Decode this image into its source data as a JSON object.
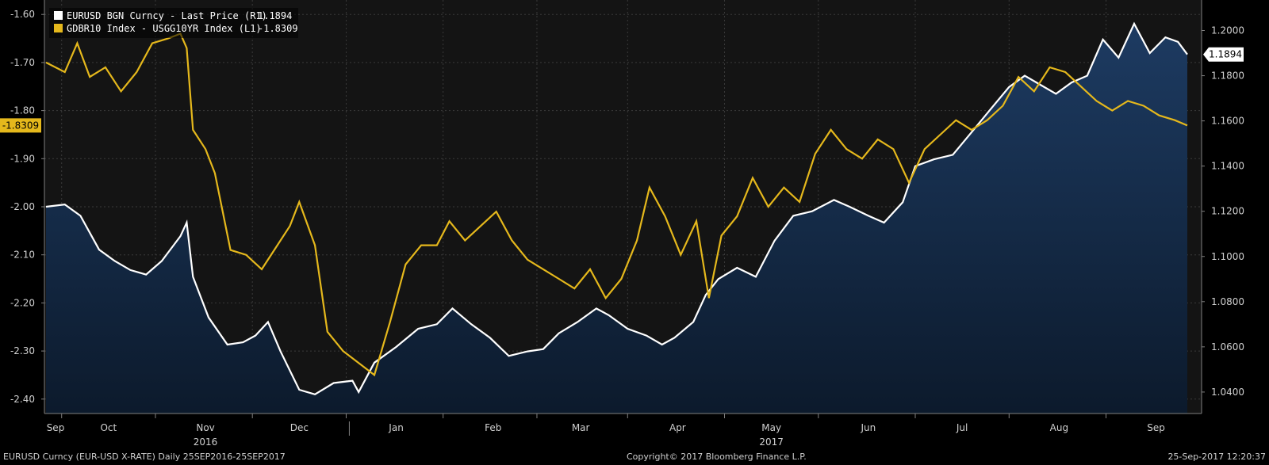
{
  "colors": {
    "background": "#000000",
    "plot_bg": "#141414",
    "grid": "#3a3a3a",
    "eurusd": "#ffffff",
    "eurusd_fill_top": "#1d3b62",
    "eurusd_fill_bottom": "#0c1a2c",
    "bund_spread": "#e5b81c"
  },
  "legend": [
    {
      "label": "EURUSD BGN Curncy - Last Price (R1)",
      "value": "1.1894",
      "color": "#ffffff"
    },
    {
      "label": "GDBR10 Index - USGG10YR Index (L1)",
      "value": "-1.8309",
      "color": "#e5b81c"
    }
  ],
  "footer": {
    "left": "EURUSD Curncy (EUR-USD X-RATE)  Daily 25SEP2016-25SEP2017",
    "center": "Copyright© 2017 Bloomberg Finance L.P.",
    "right": "25-Sep-2017 12:20:37"
  },
  "chart_data": {
    "type": "line",
    "left_axis": {
      "ylim": [
        -2.43,
        -1.57
      ],
      "ticks": [
        "-1.60",
        "-1.70",
        "-1.80",
        "-1.90",
        "-2.00",
        "-2.10",
        "-2.20",
        "-2.30",
        "-2.40"
      ],
      "last_value_label": "-1.8309"
    },
    "right_axis": {
      "ylim": [
        1.0305,
        1.2135
      ],
      "ticks": [
        "1.2000",
        "1.1800",
        "1.1600",
        "1.1400",
        "1.1200",
        "1.1000",
        "1.0800",
        "1.0600",
        "1.0400"
      ],
      "last_value_label": "1.1894"
    },
    "x_axis": {
      "range": [
        "2016-09-25",
        "2017-09-25"
      ],
      "months": [
        {
          "label": "Sep",
          "date": "2016-09-15",
          "year": ""
        },
        {
          "label": "Oct",
          "date": "2016-10-15",
          "year": ""
        },
        {
          "label": "Nov",
          "date": "2016-11-15",
          "year": "2016"
        },
        {
          "label": "Dec",
          "date": "2016-12-15",
          "year": ""
        },
        {
          "label": "Jan",
          "date": "2017-01-15",
          "year": ""
        },
        {
          "label": "Feb",
          "date": "2017-02-15",
          "year": ""
        },
        {
          "label": "Mar",
          "date": "2017-03-15",
          "year": ""
        },
        {
          "label": "Apr",
          "date": "2017-04-15",
          "year": ""
        },
        {
          "label": "May",
          "date": "2017-05-15",
          "year": "2017"
        },
        {
          "label": "Jun",
          "date": "2017-06-15",
          "year": ""
        },
        {
          "label": "Jul",
          "date": "2017-07-15",
          "year": ""
        },
        {
          "label": "Aug",
          "date": "2017-08-15",
          "year": ""
        },
        {
          "label": "Sep",
          "date": "2017-09-15",
          "year": ""
        }
      ]
    },
    "grid": true,
    "legend_position": "top-left",
    "series": [
      {
        "name": "EURUSD BGN Curncy - Last Price (R1)",
        "axis": "right",
        "type": "area",
        "points": [
          [
            "2016-09-25",
            1.122
          ],
          [
            "2016-10-01",
            1.123
          ],
          [
            "2016-10-06",
            1.118
          ],
          [
            "2016-10-12",
            1.103
          ],
          [
            "2016-10-17",
            1.098
          ],
          [
            "2016-10-22",
            1.094
          ],
          [
            "2016-10-27",
            1.092
          ],
          [
            "2016-11-01",
            1.098
          ],
          [
            "2016-11-07",
            1.109
          ],
          [
            "2016-11-09",
            1.115
          ],
          [
            "2016-11-11",
            1.091
          ],
          [
            "2016-11-16",
            1.073
          ],
          [
            "2016-11-22",
            1.061
          ],
          [
            "2016-11-27",
            1.062
          ],
          [
            "2016-12-01",
            1.065
          ],
          [
            "2016-12-05",
            1.071
          ],
          [
            "2016-12-09",
            1.058
          ],
          [
            "2016-12-15",
            1.041
          ],
          [
            "2016-12-20",
            1.039
          ],
          [
            "2016-12-26",
            1.044
          ],
          [
            "2017-01-01",
            1.045
          ],
          [
            "2017-01-03",
            1.04
          ],
          [
            "2017-01-08",
            1.053
          ],
          [
            "2017-01-15",
            1.06
          ],
          [
            "2017-01-22",
            1.068
          ],
          [
            "2017-01-28",
            1.07
          ],
          [
            "2017-02-02",
            1.077
          ],
          [
            "2017-02-08",
            1.07
          ],
          [
            "2017-02-14",
            1.064
          ],
          [
            "2017-02-20",
            1.056
          ],
          [
            "2017-02-26",
            1.058
          ],
          [
            "2017-03-03",
            1.059
          ],
          [
            "2017-03-08",
            1.066
          ],
          [
            "2017-03-14",
            1.071
          ],
          [
            "2017-03-20",
            1.077
          ],
          [
            "2017-03-24",
            1.074
          ],
          [
            "2017-03-30",
            1.068
          ],
          [
            "2017-04-05",
            1.065
          ],
          [
            "2017-04-10",
            1.061
          ],
          [
            "2017-04-14",
            1.064
          ],
          [
            "2017-04-20",
            1.071
          ],
          [
            "2017-04-24",
            1.083
          ],
          [
            "2017-04-28",
            1.09
          ],
          [
            "2017-05-04",
            1.095
          ],
          [
            "2017-05-10",
            1.091
          ],
          [
            "2017-05-16",
            1.107
          ],
          [
            "2017-05-22",
            1.118
          ],
          [
            "2017-05-28",
            1.12
          ],
          [
            "2017-06-04",
            1.125
          ],
          [
            "2017-06-09",
            1.122
          ],
          [
            "2017-06-15",
            1.118
          ],
          [
            "2017-06-20",
            1.115
          ],
          [
            "2017-06-26",
            1.124
          ],
          [
            "2017-06-30",
            1.14
          ],
          [
            "2017-07-06",
            1.143
          ],
          [
            "2017-07-12",
            1.145
          ],
          [
            "2017-07-18",
            1.155
          ],
          [
            "2017-07-24",
            1.165
          ],
          [
            "2017-07-30",
            1.175
          ],
          [
            "2017-08-04",
            1.18
          ],
          [
            "2017-08-09",
            1.176
          ],
          [
            "2017-08-14",
            1.172
          ],
          [
            "2017-08-19",
            1.177
          ],
          [
            "2017-08-24",
            1.18
          ],
          [
            "2017-08-29",
            1.196
          ],
          [
            "2017-09-03",
            1.188
          ],
          [
            "2017-09-08",
            1.203
          ],
          [
            "2017-09-13",
            1.19
          ],
          [
            "2017-09-18",
            1.197
          ],
          [
            "2017-09-22",
            1.195
          ],
          [
            "2017-09-25",
            1.1894
          ]
        ]
      },
      {
        "name": "GDBR10 Index - USGG10YR Index (L1)",
        "axis": "left",
        "type": "line",
        "points": [
          [
            "2016-09-25",
            -1.7
          ],
          [
            "2016-10-01",
            -1.72
          ],
          [
            "2016-10-05",
            -1.66
          ],
          [
            "2016-10-09",
            -1.73
          ],
          [
            "2016-10-14",
            -1.71
          ],
          [
            "2016-10-19",
            -1.76
          ],
          [
            "2016-10-24",
            -1.72
          ],
          [
            "2016-10-29",
            -1.66
          ],
          [
            "2016-11-03",
            -1.65
          ],
          [
            "2016-11-07",
            -1.64
          ],
          [
            "2016-11-09",
            -1.67
          ],
          [
            "2016-11-11",
            -1.84
          ],
          [
            "2016-11-15",
            -1.88
          ],
          [
            "2016-11-18",
            -1.93
          ],
          [
            "2016-11-23",
            -2.09
          ],
          [
            "2016-11-28",
            -2.1
          ],
          [
            "2016-12-03",
            -2.13
          ],
          [
            "2016-12-07",
            -2.09
          ],
          [
            "2016-12-12",
            -2.04
          ],
          [
            "2016-12-15",
            -1.99
          ],
          [
            "2016-12-20",
            -2.08
          ],
          [
            "2016-12-24",
            -2.26
          ],
          [
            "2016-12-29",
            -2.3
          ],
          [
            "2017-01-04",
            -2.33
          ],
          [
            "2017-01-08",
            -2.35
          ],
          [
            "2017-01-13",
            -2.24
          ],
          [
            "2017-01-18",
            -2.12
          ],
          [
            "2017-01-23",
            -2.08
          ],
          [
            "2017-01-28",
            -2.08
          ],
          [
            "2017-02-01",
            -2.03
          ],
          [
            "2017-02-06",
            -2.07
          ],
          [
            "2017-02-11",
            -2.04
          ],
          [
            "2017-02-16",
            -2.01
          ],
          [
            "2017-02-21",
            -2.07
          ],
          [
            "2017-02-26",
            -2.11
          ],
          [
            "2017-03-03",
            -2.13
          ],
          [
            "2017-03-08",
            -2.15
          ],
          [
            "2017-03-13",
            -2.17
          ],
          [
            "2017-03-18",
            -2.13
          ],
          [
            "2017-03-23",
            -2.19
          ],
          [
            "2017-03-28",
            -2.15
          ],
          [
            "2017-04-02",
            -2.07
          ],
          [
            "2017-04-06",
            -1.96
          ],
          [
            "2017-04-11",
            -2.02
          ],
          [
            "2017-04-16",
            -2.1
          ],
          [
            "2017-04-21",
            -2.03
          ],
          [
            "2017-04-25",
            -2.19
          ],
          [
            "2017-04-29",
            -2.06
          ],
          [
            "2017-05-04",
            -2.02
          ],
          [
            "2017-05-09",
            -1.94
          ],
          [
            "2017-05-14",
            -2.0
          ],
          [
            "2017-05-19",
            -1.96
          ],
          [
            "2017-05-24",
            -1.99
          ],
          [
            "2017-05-29",
            -1.89
          ],
          [
            "2017-06-03",
            -1.84
          ],
          [
            "2017-06-08",
            -1.88
          ],
          [
            "2017-06-13",
            -1.9
          ],
          [
            "2017-06-18",
            -1.86
          ],
          [
            "2017-06-23",
            -1.88
          ],
          [
            "2017-06-28",
            -1.95
          ],
          [
            "2017-07-03",
            -1.88
          ],
          [
            "2017-07-08",
            -1.85
          ],
          [
            "2017-07-13",
            -1.82
          ],
          [
            "2017-07-18",
            -1.84
          ],
          [
            "2017-07-23",
            -1.82
          ],
          [
            "2017-07-28",
            -1.79
          ],
          [
            "2017-08-02",
            -1.73
          ],
          [
            "2017-08-07",
            -1.76
          ],
          [
            "2017-08-12",
            -1.71
          ],
          [
            "2017-08-17",
            -1.72
          ],
          [
            "2017-08-22",
            -1.75
          ],
          [
            "2017-08-27",
            -1.78
          ],
          [
            "2017-09-01",
            -1.8
          ],
          [
            "2017-09-06",
            -1.78
          ],
          [
            "2017-09-11",
            -1.79
          ],
          [
            "2017-09-16",
            -1.81
          ],
          [
            "2017-09-21",
            -1.82
          ],
          [
            "2017-09-25",
            -1.8309
          ]
        ]
      }
    ]
  }
}
